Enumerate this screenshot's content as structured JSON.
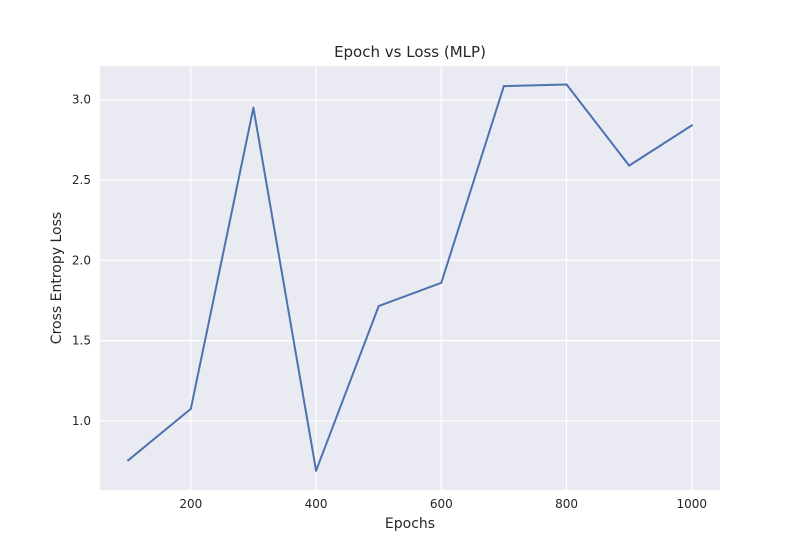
{
  "chart_data": {
    "type": "line",
    "title": "Epoch vs Loss (MLP)",
    "xlabel": "Epochs",
    "ylabel": "Cross Entropy Loss",
    "x": [
      100,
      200,
      300,
      400,
      500,
      600,
      700,
      800,
      900,
      1000
    ],
    "series": [
      {
        "values": [
          0.755,
          1.075,
          2.95,
          0.69,
          1.715,
          1.86,
          3.085,
          3.095,
          2.59,
          2.84
        ]
      }
    ],
    "xlim": [
      55,
      1045
    ],
    "ylim": [
      0.57,
      3.21
    ],
    "xticks": [
      200,
      400,
      600,
      800,
      1000
    ],
    "xtick_labels": [
      "200",
      "400",
      "600",
      "800",
      "1000"
    ],
    "yticks": [
      1.0,
      1.5,
      2.0,
      2.5,
      3.0
    ],
    "ytick_labels": [
      "1.0",
      "1.5",
      "2.0",
      "2.5",
      "3.0"
    ],
    "grid": true,
    "colors": {
      "background": "#eaeaf2",
      "line": "#4c72b0",
      "grid": "#ffffff"
    }
  }
}
